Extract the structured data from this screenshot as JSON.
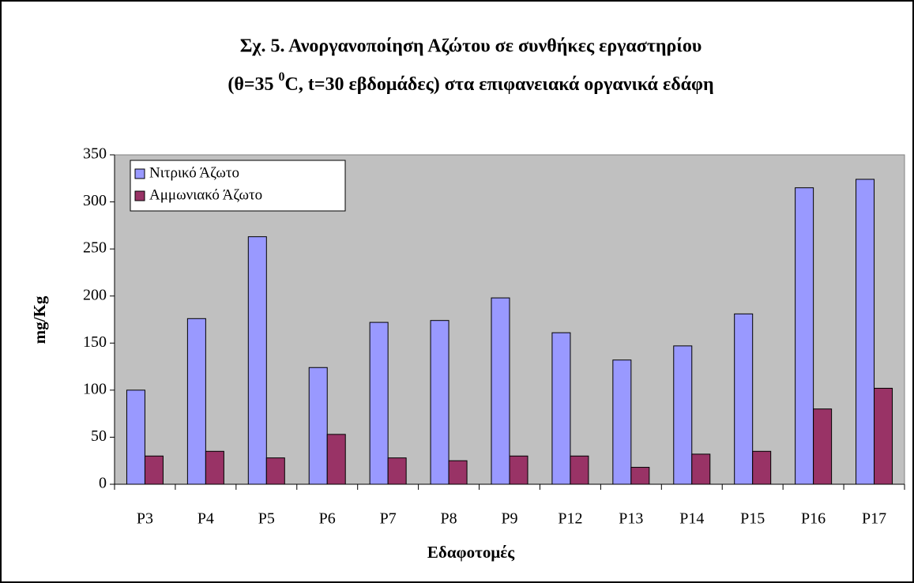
{
  "chart_data": {
    "type": "bar",
    "title": [
      "Σχ. 5.  Ανοργανοποίηση Αζώτου σε συνθήκες εργαστηρίου",
      [
        "(θ=35 ",
        "0",
        "C, t=30 εβδομάδες) στα επιφανειακά οργανικά εδάφη"
      ]
    ],
    "x_label": "Εδαφοτομές",
    "y_label": "mg/Kg",
    "categories": [
      "P3",
      "P4",
      "P5",
      "P6",
      "P7",
      "P8",
      "P9",
      "P12",
      "P13",
      "P14",
      "P15",
      "P16",
      "P17"
    ],
    "series": [
      {
        "name": "Νιτρικό Άζωτο",
        "color": "#9999ff",
        "values": [
          100,
          176,
          263,
          124,
          172,
          174,
          198,
          161,
          132,
          147,
          181,
          315,
          324
        ]
      },
      {
        "name": "Αμμωνιακό Άζωτο",
        "color": "#993366",
        "values": [
          30,
          35,
          28,
          53,
          28,
          25,
          30,
          30,
          18,
          32,
          35,
          80,
          102
        ]
      }
    ],
    "ylim": [
      0,
      350
    ],
    "yticks": [
      0,
      50,
      100,
      150,
      200,
      250,
      300,
      350
    ],
    "plot_background": "#c0c0c0",
    "legend": "upper left"
  }
}
